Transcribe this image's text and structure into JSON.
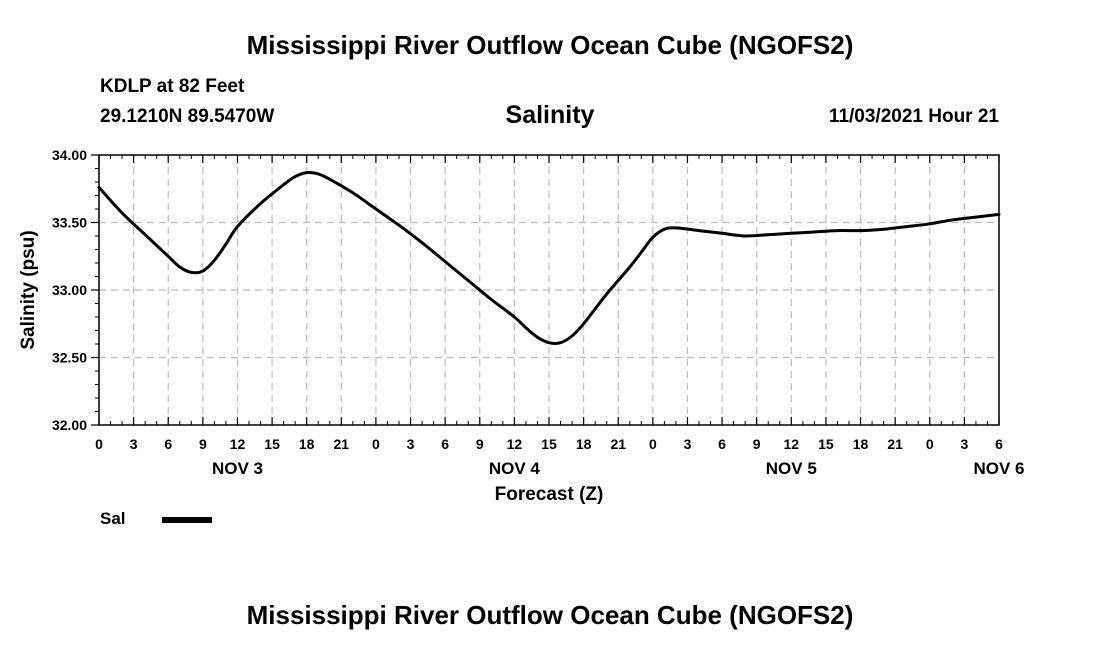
{
  "header": {
    "title": "Mississippi River Outflow Ocean Cube (NGOFS2)",
    "station": "KDLP at 82 Feet",
    "coords": "29.1210N  89.5470W",
    "plot_title": "Salinity",
    "datetime": "11/03/2021 Hour 21"
  },
  "footer": {
    "title": "Mississippi River Outflow Ocean Cube (NGOFS2)"
  },
  "legend": {
    "label": "Sal",
    "color": "#000000"
  },
  "chart_data": {
    "type": "line",
    "title": "Salinity",
    "xlabel": "Forecast (Z)",
    "ylabel": "Salinity (psu)",
    "xlim": [
      0,
      78
    ],
    "ylim": [
      32.0,
      34.0
    ],
    "grid": true,
    "x_tick_labels": [
      "0",
      "3",
      "6",
      "9",
      "12",
      "15",
      "18",
      "21",
      "0",
      "3",
      "6",
      "9",
      "12",
      "15",
      "18",
      "21",
      "0",
      "3",
      "6",
      "9",
      "12",
      "15",
      "18",
      "21",
      "0",
      "3",
      "6"
    ],
    "y_tick_labels": [
      "32.00",
      "32.50",
      "33.00",
      "33.50",
      "34.00"
    ],
    "day_labels": [
      {
        "label": "NOV 3",
        "hour": 12
      },
      {
        "label": "NOV 4",
        "hour": 36
      },
      {
        "label": "NOV 5",
        "hour": 60
      },
      {
        "label": "NOV 6",
        "hour": 78
      }
    ],
    "series": [
      {
        "name": "Sal",
        "x": [
          0,
          2,
          4,
          6,
          7,
          8,
          9,
          10,
          11,
          12,
          14,
          16,
          17,
          18,
          19,
          20,
          22,
          24,
          26,
          28,
          30,
          32,
          34,
          36,
          37,
          38,
          39,
          40,
          41,
          42,
          44,
          46,
          47,
          48,
          49,
          50,
          52,
          54,
          56,
          58,
          60,
          62,
          64,
          66,
          68,
          70,
          72,
          74,
          76,
          78
        ],
        "values": [
          33.76,
          33.57,
          33.41,
          33.25,
          33.17,
          33.13,
          33.14,
          33.22,
          33.34,
          33.47,
          33.64,
          33.78,
          33.84,
          33.87,
          33.86,
          33.82,
          33.72,
          33.6,
          33.48,
          33.35,
          33.21,
          33.07,
          32.93,
          32.8,
          32.72,
          32.65,
          32.61,
          32.61,
          32.66,
          32.75,
          32.97,
          33.17,
          33.28,
          33.39,
          33.45,
          33.46,
          33.44,
          33.42,
          33.4,
          33.41,
          33.42,
          33.43,
          33.44,
          33.44,
          33.45,
          33.47,
          33.49,
          33.52,
          33.54,
          33.56
        ]
      }
    ]
  }
}
